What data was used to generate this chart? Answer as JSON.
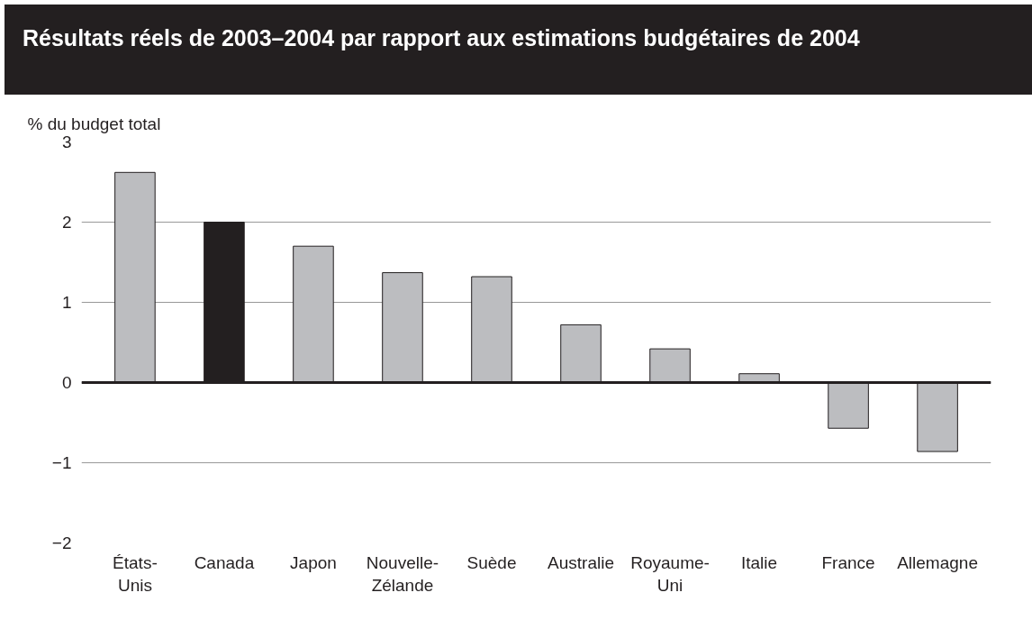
{
  "chart_data": {
    "type": "bar",
    "title": "Résultats réels de 2003–2004 par rapport aux estimations budgétaires de 2004",
    "ylabel": "% du budget total",
    "categories": [
      "États-Unis",
      "Canada",
      "Japon",
      "Nouvelle-Zélande",
      "Suède",
      "Australie",
      "Royaume-Uni",
      "Italie",
      "France",
      "Allemagne"
    ],
    "values": [
      2.62,
      2.0,
      1.7,
      1.37,
      1.32,
      0.72,
      0.42,
      0.11,
      -0.57,
      -0.86
    ],
    "colors": [
      "#bcbdc0",
      "#231f20",
      "#bcbdc0",
      "#bcbdc0",
      "#bcbdc0",
      "#bcbdc0",
      "#bcbdc0",
      "#bcbdc0",
      "#bcbdc0",
      "#bcbdc0"
    ],
    "ylim": [
      -2,
      3
    ],
    "yticks": [
      -2,
      -1,
      0,
      1,
      2,
      3
    ],
    "grid": "y",
    "ref_lines": [
      {
        "axis": "y",
        "value": 0,
        "color": "#231f20"
      }
    ]
  }
}
